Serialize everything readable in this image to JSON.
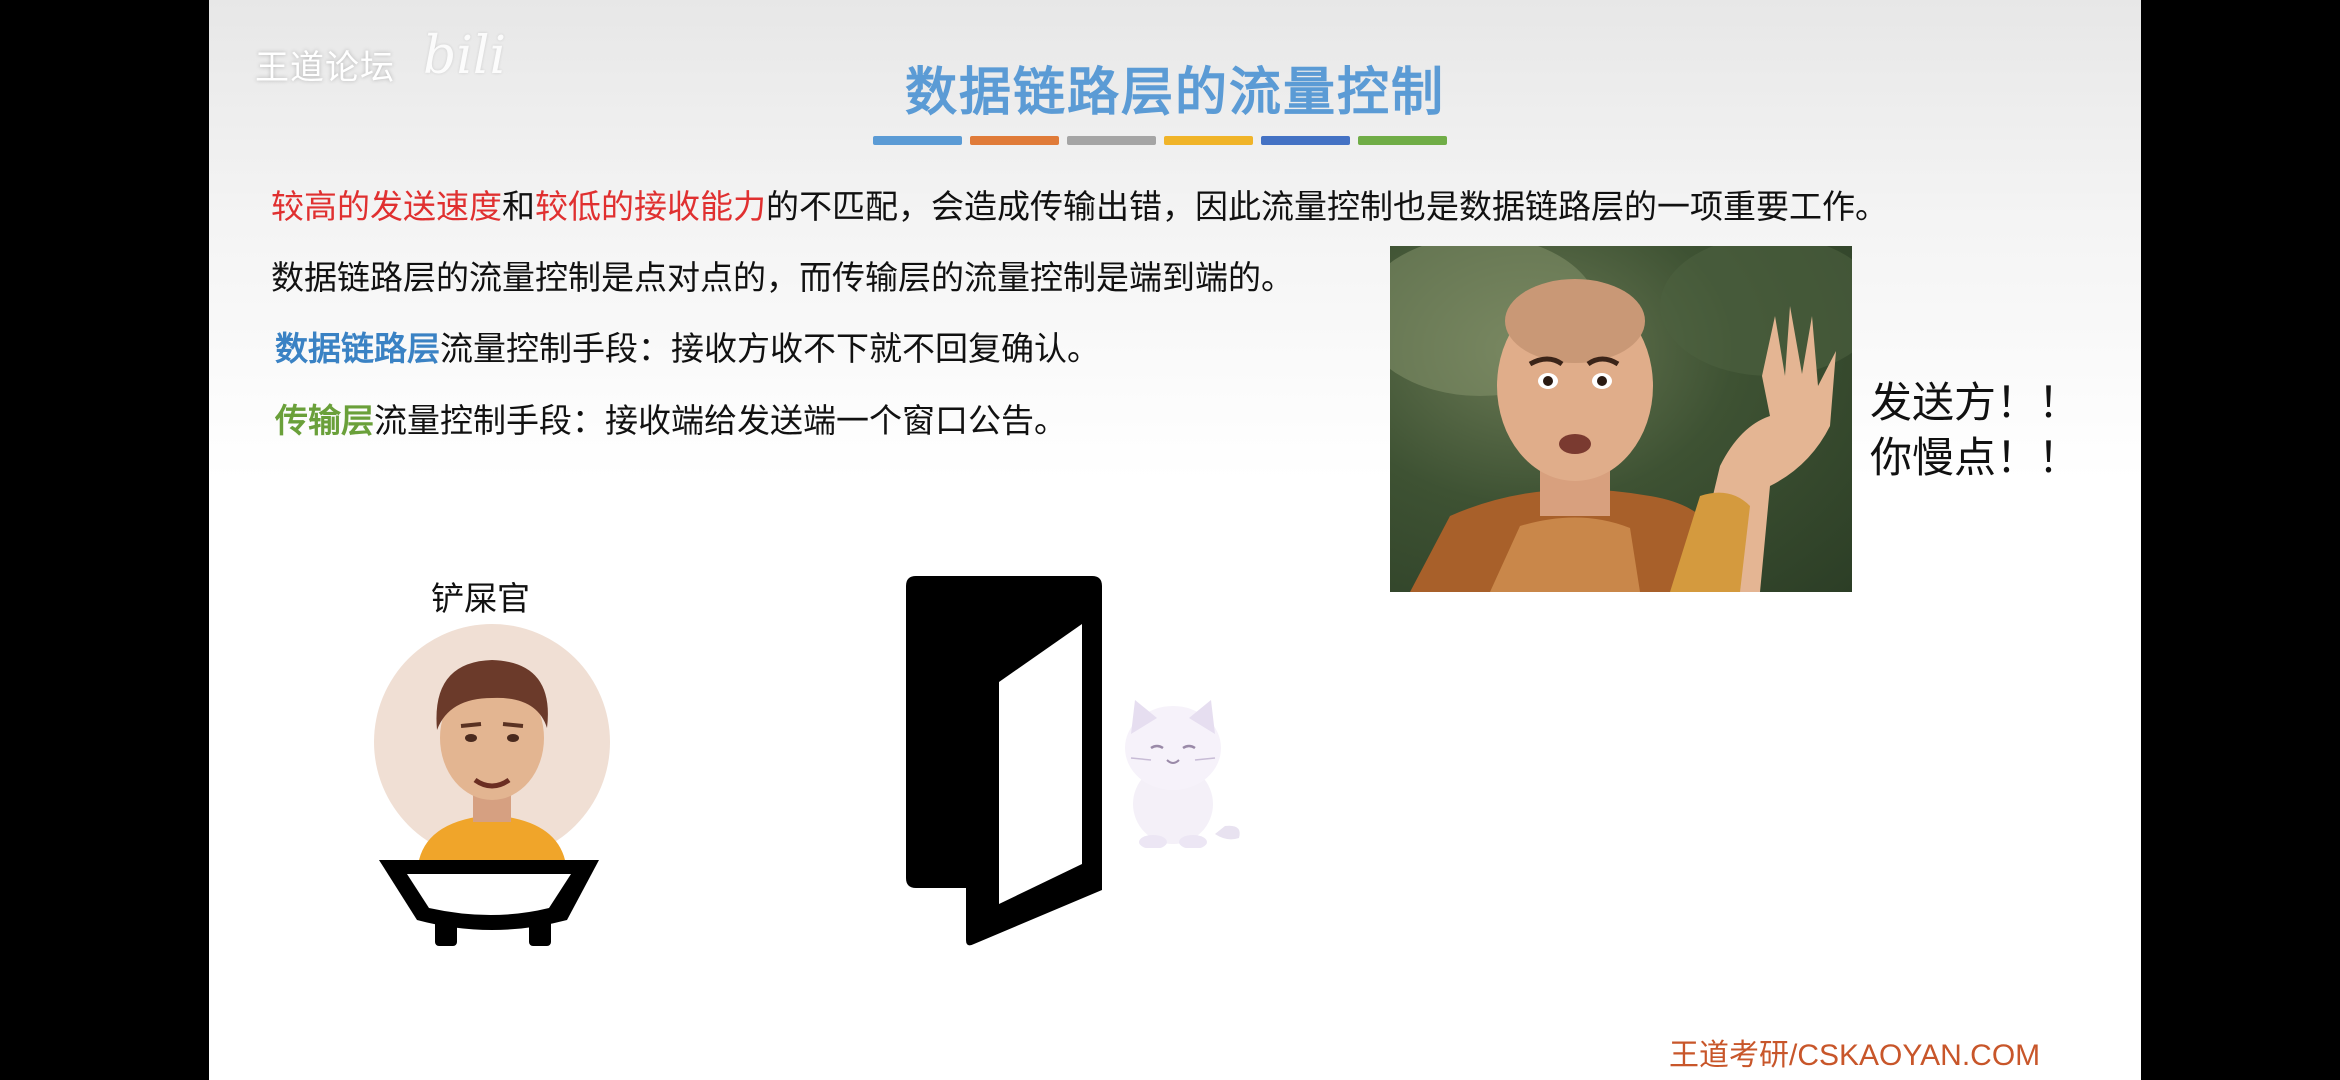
{
  "watermark": {
    "text": "王道论坛",
    "sub": "bili"
  },
  "title": "数据链路层的流量控制",
  "colors": {
    "bars": [
      "#5b9bd5",
      "#e07b39",
      "#a5a5a5",
      "#f0b429",
      "#4472c4",
      "#70ad47"
    ]
  },
  "lines": [
    {
      "red1": "较高的发送速度",
      "mid": "和",
      "red2": "较低的接收能力",
      "rest": "的不匹配，会造成传输出错，因此流量控制也是数据链路层的一项重要工作。"
    },
    {
      "text": "数据链路层的流量控制是点对点的，而传输层的流量控制是端到端的。"
    },
    {
      "highlight": "数据链路层",
      "rest": "流量控制手段：接收方收不下就不回复确认。"
    },
    {
      "highlight": "传输层",
      "rest": "流量控制手段：接收端给发送端一个窗口公告。"
    }
  ],
  "speech": {
    "line1": "发送方！！",
    "line2": "你慢点！！"
  },
  "owner_label": "铲屎官",
  "footer": "王道考研/CSKAOYAN.COM"
}
